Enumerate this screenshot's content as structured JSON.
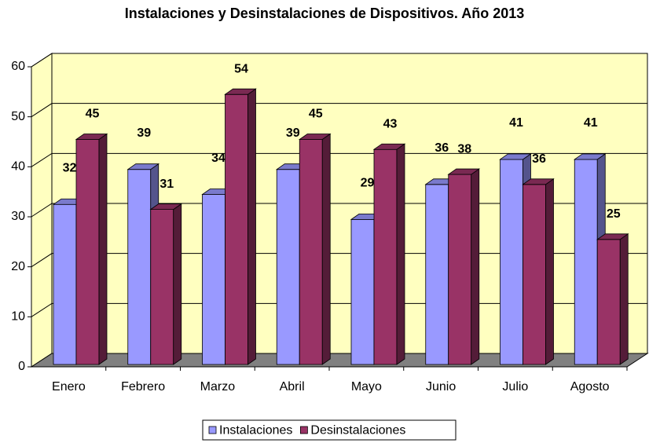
{
  "chart_data": {
    "type": "bar3d",
    "title": "Instalaciones y Desinstalaciones de Dispositivos. Año 2013",
    "categories": [
      "Enero",
      "Febrero",
      "Marzo",
      "Abril",
      "Mayo",
      "Junio",
      "Julio",
      "Agosto"
    ],
    "series": [
      {
        "name": "Instalaciones",
        "color": "#9999ff",
        "values": [
          32,
          39,
          34,
          39,
          29,
          36,
          41,
          41
        ]
      },
      {
        "name": "Desinstalaciones",
        "color": "#993366",
        "values": [
          45,
          31,
          54,
          45,
          43,
          38,
          36,
          25
        ]
      }
    ],
    "ylim": [
      0,
      60
    ],
    "yticks": [
      0,
      10,
      20,
      30,
      40,
      50,
      60
    ],
    "grid": true,
    "legend": "bottom"
  }
}
